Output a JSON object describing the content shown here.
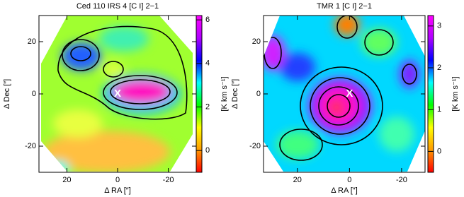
{
  "chart_data": [
    {
      "type": "contour",
      "title": "Ced 110 IRS 4 [C I] 2−1",
      "xlabel": "Δ RA [″]",
      "ylabel": "Δ Dec [″]",
      "xlim": [
        31,
        -31
      ],
      "ylim": [
        -30,
        30
      ],
      "xticks": [
        20,
        0,
        -20
      ],
      "yticks": [
        20,
        0,
        -20
      ],
      "annotation": {
        "text": "X",
        "x": 0,
        "y": 0,
        "color": "#ffffff"
      },
      "colorbar": {
        "label": "[K km s⁻¹]",
        "lim": [
          -1,
          6.2
        ],
        "ticks": [
          0,
          2,
          4,
          6
        ],
        "colormap": [
          "#ff0000",
          "#ff9a00",
          "#ffff00",
          "#00ff00",
          "#00ffff",
          "#0000ff",
          "#b000ff",
          "#ff00ff"
        ]
      }
    },
    {
      "type": "contour",
      "title": "TMR 1 [C I] 2−1",
      "xlabel": "Δ RA [″]",
      "ylabel": "Δ Dec [″]",
      "xlim": [
        33,
        -29
      ],
      "ylim": [
        -30,
        30
      ],
      "xticks": [
        20,
        0,
        -20
      ],
      "yticks": [
        20,
        0,
        -20
      ],
      "annotation": {
        "text": "X",
        "x": 0,
        "y": 0,
        "color": "#ffffff"
      },
      "colorbar": {
        "label": "[K km s⁻¹]",
        "lim": [
          -0.5,
          3.25
        ],
        "ticks": [
          0,
          1,
          2,
          3
        ],
        "colormap": [
          "#ff0000",
          "#ff9a00",
          "#ffff00",
          "#00ff00",
          "#00ffff",
          "#0000ff",
          "#b000ff",
          "#ff00ff"
        ]
      }
    }
  ]
}
